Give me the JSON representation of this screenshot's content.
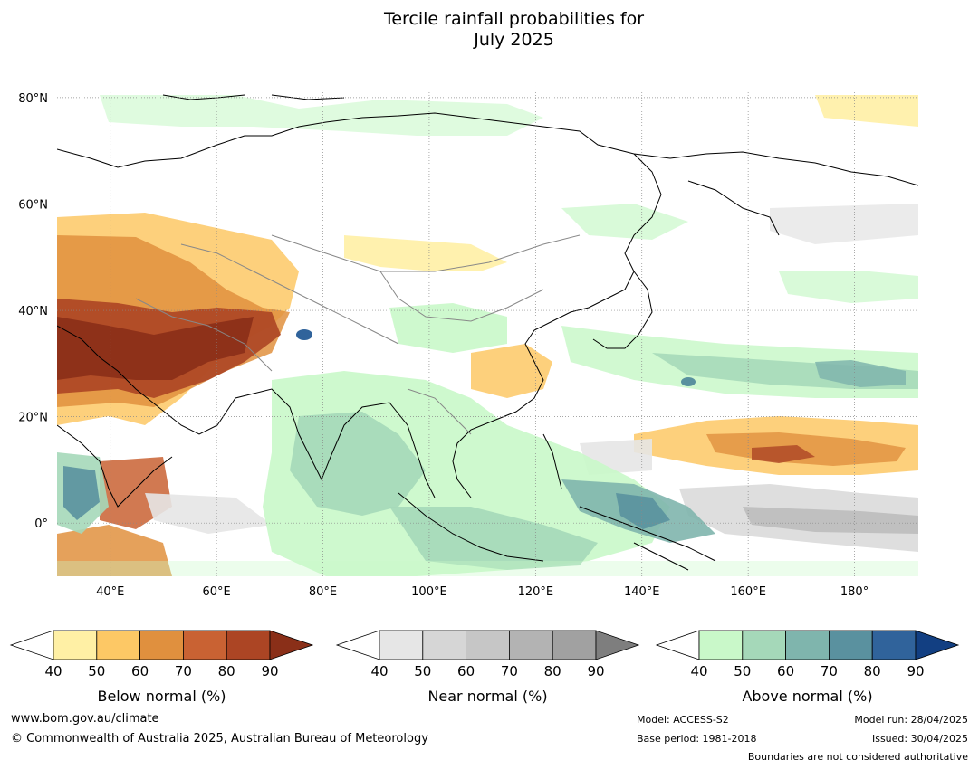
{
  "title_line1": "Tercile rainfall probabilities for",
  "title_line2": "July 2025",
  "lat_labels": [
    "80°N",
    "60°N",
    "40°N",
    "20°N",
    "0°"
  ],
  "lat_values": [
    80,
    60,
    40,
    20,
    0
  ],
  "lon_labels": [
    "40°E",
    "60°E",
    "80°E",
    "100°E",
    "120°E",
    "140°E",
    "160°E",
    "180°"
  ],
  "lon_values": [
    40,
    60,
    80,
    100,
    120,
    140,
    160,
    180
  ],
  "map_extent": {
    "lon": [
      30,
      192
    ],
    "lat": [
      -10,
      81
    ]
  },
  "colorbars": [
    {
      "label": "Below normal (%)",
      "ticks": [
        "40",
        "50",
        "60",
        "70",
        "80",
        "90"
      ],
      "colors": [
        "#fff0a5",
        "#fdc865",
        "#e0903e",
        "#c96233",
        "#ac4524",
        "#8a2f18"
      ]
    },
    {
      "label": "Near normal (%)",
      "ticks": [
        "40",
        "50",
        "60",
        "70",
        "80",
        "90"
      ],
      "colors": [
        "#e6e6e6",
        "#d6d6d6",
        "#c6c6c6",
        "#b3b3b3",
        "#a1a1a1",
        "#7e7e7e"
      ]
    },
    {
      "label": "Above normal (%)",
      "ticks": [
        "40",
        "50",
        "60",
        "70",
        "80",
        "90"
      ],
      "colors": [
        "#c9f8c9",
        "#a5d8b9",
        "#7fb5ad",
        "#5a919f",
        "#30639b",
        "#123f82"
      ]
    }
  ],
  "footer": {
    "url": "www.bom.gov.au/climate",
    "copyright": "© Commonwealth of Australia 2025, Australian Bureau of Meteorology",
    "model": "Model: ACCESS-S2",
    "base_period": "Base period: 1981-2018",
    "model_run": "Model run: 28/04/2025",
    "issued": "Issued: 30/04/2025",
    "disclaimer": "Boundaries are not considered authoritative"
  }
}
